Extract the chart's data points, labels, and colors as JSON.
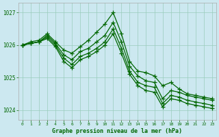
{
  "background_color": "#cce8f0",
  "grid_color": "#99ccbb",
  "line_color": "#006600",
  "ylim": [
    1023.7,
    1027.3
  ],
  "xlim": [
    -0.5,
    23.5
  ],
  "yticks": [
    1024,
    1025,
    1026,
    1027
  ],
  "xticks": [
    0,
    1,
    2,
    3,
    4,
    5,
    6,
    7,
    8,
    9,
    10,
    11,
    12,
    13,
    14,
    15,
    16,
    17,
    18,
    19,
    20,
    21,
    22,
    23
  ],
  "series": [
    [
      1026.0,
      1026.1,
      1026.15,
      1026.35,
      1026.1,
      1025.85,
      1025.75,
      1025.95,
      1026.15,
      1026.4,
      1026.65,
      1027.0,
      1026.35,
      1025.5,
      1025.2,
      1025.15,
      1025.05,
      1024.75,
      1024.85,
      1024.65,
      1024.5,
      1024.45,
      1024.4,
      1024.35
    ],
    [
      1026.0,
      1026.05,
      1026.1,
      1026.3,
      1026.05,
      1025.7,
      1025.55,
      1025.8,
      1025.9,
      1026.1,
      1026.3,
      1026.7,
      1026.1,
      1025.35,
      1025.05,
      1024.9,
      1024.85,
      1024.35,
      1024.6,
      1024.55,
      1024.45,
      1024.4,
      1024.35,
      1024.3
    ],
    [
      1026.0,
      1026.05,
      1026.1,
      1026.25,
      1026.0,
      1025.6,
      1025.4,
      1025.65,
      1025.75,
      1025.9,
      1026.1,
      1026.5,
      1025.9,
      1025.2,
      1024.85,
      1024.75,
      1024.7,
      1024.2,
      1024.45,
      1024.4,
      1024.3,
      1024.25,
      1024.2,
      1024.15
    ],
    [
      1026.0,
      1026.05,
      1026.1,
      1026.2,
      1025.95,
      1025.5,
      1025.3,
      1025.55,
      1025.65,
      1025.8,
      1026.0,
      1026.35,
      1025.75,
      1025.1,
      1024.75,
      1024.6,
      1024.55,
      1024.1,
      1024.35,
      1024.3,
      1024.2,
      1024.15,
      1024.1,
      1024.05
    ]
  ]
}
